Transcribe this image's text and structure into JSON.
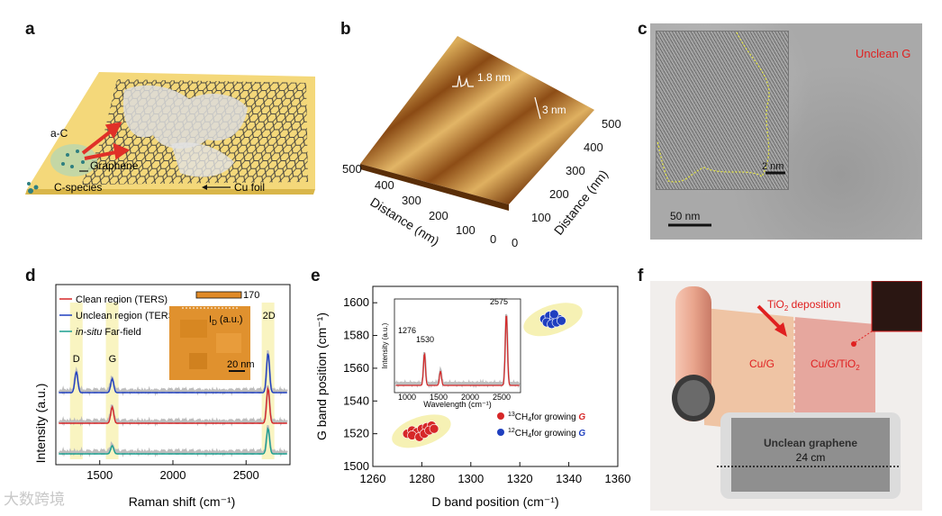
{
  "panels": {
    "a": {
      "label": "a",
      "labels": [
        "a-C",
        "Graphene",
        "C-species",
        "Cu foil"
      ]
    },
    "b": {
      "label": "b",
      "annot_18": "1.8 nm",
      "annot_3": "3 nm",
      "axis_left": {
        "title": "Distance (nm)",
        "ticks": [
          "500",
          "400",
          "300",
          "200",
          "100",
          "0"
        ]
      },
      "axis_right": {
        "title": "Distance (nm)",
        "ticks": [
          "500",
          "400",
          "300",
          "200",
          "100",
          "0"
        ]
      }
    },
    "c": {
      "label": "c",
      "title": "Unclean G",
      "scale_inset": "2 nm",
      "scale_main": "50 nm"
    },
    "d": {
      "label": "d",
      "legend": [
        "Clean region (TERS)",
        "Unclean region (TERS)",
        "Far-field"
      ],
      "legend_prefix": "in-situ",
      "peaks": [
        "D",
        "G",
        "2D"
      ],
      "inset_scale_max": "170",
      "inset_label": "I",
      "inset_label_sub": "D",
      "inset_label_suffix": " (a.u.)",
      "inset_scale": "20 nm",
      "colors": {
        "clean": "#d62728",
        "unclean": "#1f3fbf",
        "far": "#1a9e8f"
      }
    },
    "e": {
      "label": "e",
      "legend": [
        {
          "sup": "13",
          "rest": "CH",
          "sub": "4",
          "tail": "for growing ",
          "g": "G",
          "color": "#d62728"
        },
        {
          "sup": "12",
          "rest": "CH",
          "sub": "4",
          "tail": "for growing ",
          "g": "G",
          "color": "#1f3fbf"
        }
      ],
      "inset": {
        "xlabel": "Wavelength (cm⁻¹)",
        "ylabel": "Intensity (a.u.)",
        "xticks": [
          "1000",
          "1500",
          "2000",
          "2500"
        ],
        "peak_labels": [
          "1276",
          "1530",
          "2575"
        ]
      }
    },
    "f": {
      "label": "f",
      "tio2": "TiO",
      "tio2_sub": "2",
      "tio2_tail": " deposition",
      "cug": "Cu/G",
      "cugtio2": "Cu/G/TiO",
      "cugtio2_sub": "2",
      "tablet_text": "Unclean graphene",
      "size": "24 cm"
    }
  },
  "watermark": "大数跨境",
  "chart_data": [
    {
      "type": "line",
      "panel": "d",
      "title": "",
      "xlabel": "Raman shift (cm⁻¹)",
      "ylabel": "Intensity (a.u.)",
      "xlim": [
        1200,
        2800
      ],
      "xticks": [
        1500,
        2000,
        2500
      ],
      "series": [
        {
          "name": "Unclean region (TERS)",
          "offset": 2,
          "peaks": [
            {
              "x": 1340,
              "h": 0.9
            },
            {
              "x": 1585,
              "h": 0.6
            },
            {
              "x": 2650,
              "h": 1.7
            }
          ]
        },
        {
          "name": "Clean region (TERS)",
          "offset": 1,
          "peaks": [
            {
              "x": 1585,
              "h": 0.7
            },
            {
              "x": 2650,
              "h": 1.5
            }
          ]
        },
        {
          "name": "in-situ Far-field",
          "offset": 0,
          "peaks": [
            {
              "x": 1585,
              "h": 0.35
            },
            {
              "x": 2650,
              "h": 1.1
            }
          ]
        }
      ]
    },
    {
      "type": "scatter",
      "panel": "e",
      "title": "",
      "xlabel": "D band position (cm⁻¹)",
      "ylabel": "G band position (cm⁻¹)",
      "xlim": [
        1260,
        1360
      ],
      "ylim": [
        1500,
        1610
      ],
      "xticks": [
        1260,
        1280,
        1300,
        1320,
        1340,
        1360
      ],
      "yticks": [
        1500,
        1520,
        1540,
        1560,
        1580,
        1600
      ],
      "series": [
        {
          "name": "13CH4 for growing G",
          "color": "#d62728",
          "points": [
            [
              1274,
              1520
            ],
            [
              1276,
              1522
            ],
            [
              1278,
              1521
            ],
            [
              1280,
              1523
            ],
            [
              1282,
              1524
            ],
            [
              1284,
              1525
            ],
            [
              1276,
              1519
            ],
            [
              1279,
              1518
            ],
            [
              1281,
              1520
            ],
            [
              1283,
              1522
            ],
            [
              1285,
              1523
            ]
          ]
        },
        {
          "name": "12CH4 for growing G",
          "color": "#1f3fbf",
          "points": [
            [
              1330,
              1590
            ],
            [
              1332,
              1592
            ],
            [
              1334,
              1591
            ],
            [
              1336,
              1590
            ],
            [
              1331,
              1588
            ],
            [
              1333,
              1587
            ],
            [
              1335,
              1588
            ],
            [
              1337,
              1589
            ],
            [
              1334,
              1593
            ]
          ]
        }
      ]
    }
  ]
}
